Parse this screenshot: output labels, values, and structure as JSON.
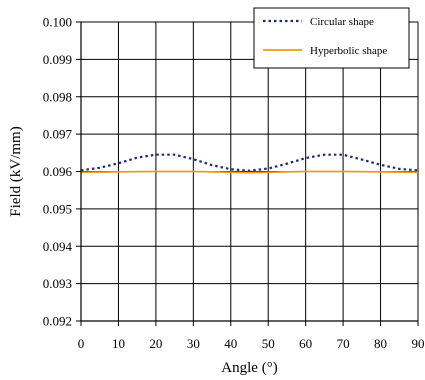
{
  "chart_data": {
    "type": "line",
    "xlabel": "Angle (°)",
    "ylabel": "Field (kV/mm)",
    "xlim": [
      0,
      90
    ],
    "ylim": [
      0.092,
      0.1
    ],
    "x_ticks": [
      "0",
      "10",
      "20",
      "30",
      "40",
      "50",
      "60",
      "70",
      "80",
      "90"
    ],
    "y_ticks": [
      "0.092",
      "0.093",
      "0.094",
      "0.095",
      "0.096",
      "0.097",
      "0.098",
      "0.099",
      "0.100"
    ],
    "grid": true,
    "legend_position": "top-right",
    "series": [
      {
        "name": "Circular shape",
        "color": "#1f2a78",
        "style": "dotted",
        "x": [
          0,
          5,
          10,
          15,
          20,
          25,
          30,
          35,
          40,
          45,
          50,
          55,
          60,
          65,
          70,
          75,
          80,
          85,
          90
        ],
        "y": [
          0.09603,
          0.0961,
          0.09622,
          0.09637,
          0.09645,
          0.09645,
          0.09633,
          0.09617,
          0.09606,
          0.09602,
          0.09608,
          0.09621,
          0.09636,
          0.09645,
          0.09645,
          0.09632,
          0.09618,
          0.09607,
          0.09603
        ]
      },
      {
        "name": "Hyperbolic shape",
        "color": "#f39a1e",
        "style": "solid",
        "x": [
          0,
          10,
          20,
          30,
          40,
          45,
          50,
          60,
          70,
          80,
          90
        ],
        "y": [
          0.09598,
          0.09599,
          0.096,
          0.096,
          0.09598,
          0.09597,
          0.09598,
          0.096,
          0.096,
          0.09599,
          0.09598
        ]
      }
    ]
  }
}
